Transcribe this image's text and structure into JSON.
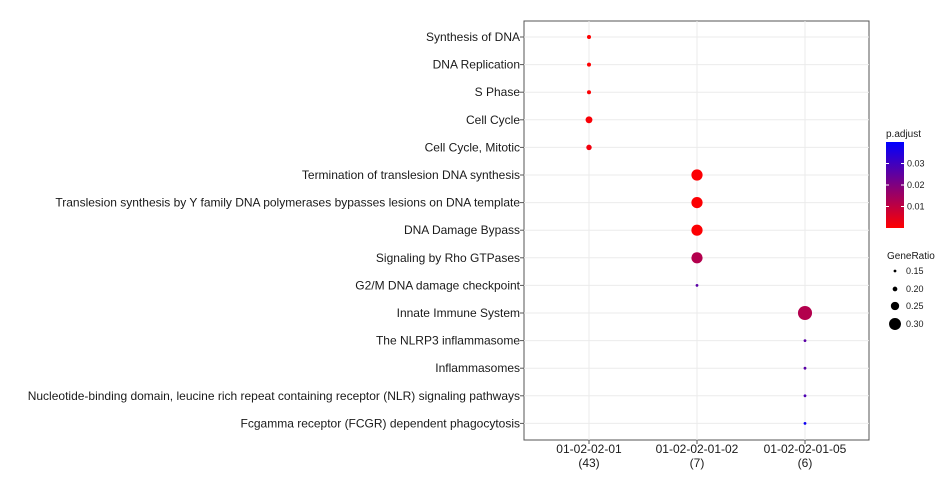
{
  "chart_data": {
    "type": "scatter",
    "categories_y": [
      "Synthesis of DNA",
      "DNA Replication",
      "S Phase",
      "Cell Cycle",
      "Cell Cycle, Mitotic",
      "Termination of translesion DNA synthesis",
      "Translesion synthesis by Y family DNA polymerases bypasses lesions on DNA template",
      "DNA Damage Bypass",
      "Signaling by Rho GTPases",
      "G2/M DNA damage checkpoint",
      "Innate Immune System",
      "The NLRP3 inflammasome",
      "Inflammasomes",
      "Nucleotide-binding domain, leucine rich repeat containing receptor (NLR) signaling pathways",
      "Fcgamma receptor (FCGR) dependent phagocytosis"
    ],
    "categories_x": [
      {
        "label": "01-02-02-01",
        "count": "(43)"
      },
      {
        "label": "01-02-02-01-02",
        "count": "(7)"
      },
      {
        "label": "01-02-02-01-05",
        "count": "(6)"
      }
    ],
    "points": [
      {
        "x": 0,
        "y": 0,
        "gene_ratio": 0.19,
        "p_adjust": 0.0002
      },
      {
        "x": 0,
        "y": 1,
        "gene_ratio": 0.19,
        "p_adjust": 0.0002
      },
      {
        "x": 0,
        "y": 2,
        "gene_ratio": 0.19,
        "p_adjust": 0.0005
      },
      {
        "x": 0,
        "y": 3,
        "gene_ratio": 0.23,
        "p_adjust": 0.001
      },
      {
        "x": 0,
        "y": 4,
        "gene_ratio": 0.21,
        "p_adjust": 0.002
      },
      {
        "x": 1,
        "y": 5,
        "gene_ratio": 0.29,
        "p_adjust": 0.0005
      },
      {
        "x": 1,
        "y": 6,
        "gene_ratio": 0.29,
        "p_adjust": 0.0005
      },
      {
        "x": 1,
        "y": 7,
        "gene_ratio": 0.29,
        "p_adjust": 0.0005
      },
      {
        "x": 1,
        "y": 8,
        "gene_ratio": 0.29,
        "p_adjust": 0.012
      },
      {
        "x": 1,
        "y": 9,
        "gene_ratio": 0.14,
        "p_adjust": 0.026
      },
      {
        "x": 2,
        "y": 10,
        "gene_ratio": 0.33,
        "p_adjust": 0.012
      },
      {
        "x": 2,
        "y": 11,
        "gene_ratio": 0.17,
        "p_adjust": 0.026
      },
      {
        "x": 2,
        "y": 12,
        "gene_ratio": 0.17,
        "p_adjust": 0.026
      },
      {
        "x": 2,
        "y": 13,
        "gene_ratio": 0.17,
        "p_adjust": 0.028
      },
      {
        "x": 2,
        "y": 14,
        "gene_ratio": 0.17,
        "p_adjust": 0.038
      }
    ],
    "color_legend": {
      "title": "p.adjust",
      "ticks": [
        0.01,
        0.02,
        0.03
      ],
      "range": [
        0.0,
        0.04
      ],
      "low_color": "#ff0000",
      "high_color": "#0000ff"
    },
    "size_legend": {
      "title": "GeneRatio",
      "values": [
        0.15,
        0.2,
        0.25,
        0.3
      ],
      "labels": [
        "0.15",
        "0.20",
        "0.25",
        "0.30"
      ]
    },
    "grid": true,
    "legend_position": "right"
  }
}
